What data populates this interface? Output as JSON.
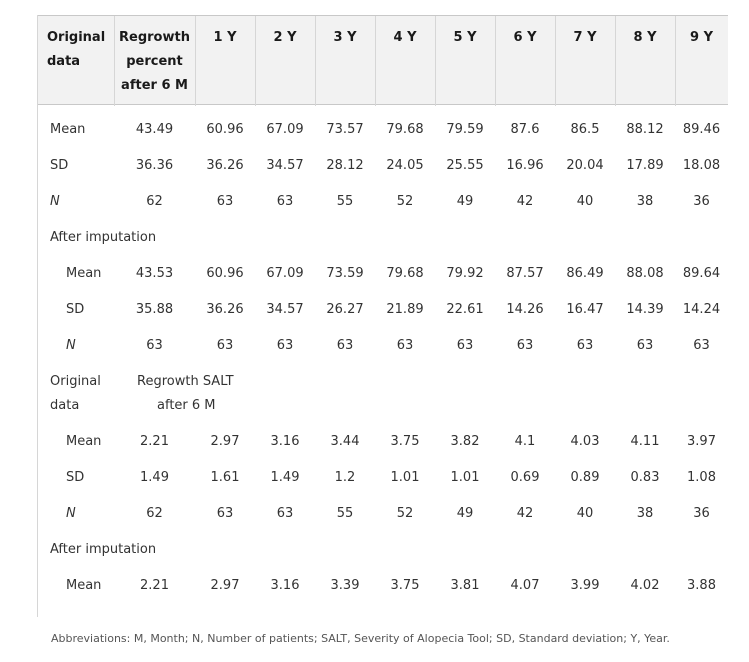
{
  "header": {
    "first": [
      "Original",
      "data"
    ],
    "second": [
      "Regrowth",
      "percent",
      "after 6 M"
    ],
    "years": [
      "1 Y",
      "2 Y",
      "3 Y",
      "4 Y",
      "5 Y",
      "6 Y",
      "7 Y",
      "8 Y",
      "9 Y"
    ]
  },
  "rows": [
    {
      "label": "Mean",
      "italic": false,
      "indent": false,
      "values": [
        "43.49",
        "60.96",
        "67.09",
        "73.57",
        "79.68",
        "79.59",
        "87.6",
        "86.5",
        "88.12",
        "89.46"
      ]
    },
    {
      "label": "SD",
      "italic": false,
      "indent": false,
      "values": [
        "36.36",
        "36.26",
        "34.57",
        "28.12",
        "24.05",
        "25.55",
        "16.96",
        "20.04",
        "17.89",
        "18.08"
      ]
    },
    {
      "label": "N",
      "italic": true,
      "indent": false,
      "values": [
        "62",
        "63",
        "63",
        "55",
        "52",
        "49",
        "42",
        "40",
        "38",
        "36"
      ]
    },
    {
      "section": "After imputation"
    },
    {
      "label": "Mean",
      "italic": false,
      "indent": true,
      "values": [
        "43.53",
        "60.96",
        "67.09",
        "73.59",
        "79.68",
        "79.92",
        "87.57",
        "86.49",
        "88.08",
        "89.64"
      ]
    },
    {
      "label": "SD",
      "italic": false,
      "indent": true,
      "values": [
        "35.88",
        "36.26",
        "34.57",
        "26.27",
        "21.89",
        "22.61",
        "14.26",
        "16.47",
        "14.39",
        "14.24"
      ]
    },
    {
      "label": "N",
      "italic": true,
      "indent": true,
      "values": [
        "63",
        "63",
        "63",
        "63",
        "63",
        "63",
        "63",
        "63",
        "63",
        "63"
      ]
    },
    {
      "subheader": {
        "first": [
          "Original",
          "data"
        ],
        "second": [
          "Regrowth SALT",
          "after 6 M"
        ]
      }
    },
    {
      "label": "Mean",
      "italic": false,
      "indent": true,
      "values": [
        "2.21",
        "2.97",
        "3.16",
        "3.44",
        "3.75",
        "3.82",
        "4.1",
        "4.03",
        "4.11",
        "3.97"
      ]
    },
    {
      "label": "SD",
      "italic": false,
      "indent": true,
      "values": [
        "1.49",
        "1.61",
        "1.49",
        "1.2",
        "1.01",
        "1.01",
        "0.69",
        "0.89",
        "0.83",
        "1.08"
      ]
    },
    {
      "label": "N",
      "italic": true,
      "indent": true,
      "values": [
        "62",
        "63",
        "63",
        "55",
        "52",
        "49",
        "42",
        "40",
        "38",
        "36"
      ]
    },
    {
      "section": "After imputation"
    },
    {
      "label": "Mean",
      "italic": false,
      "indent": true,
      "values": [
        "2.21",
        "2.97",
        "3.16",
        "3.39",
        "3.75",
        "3.81",
        "4.07",
        "3.99",
        "4.02",
        "3.88"
      ]
    }
  ],
  "footnote": "Abbreviations: M, Month; N, Number of patients; SALT, Severity of Alopecia Tool; SD, Standard deviation; Y, Year."
}
